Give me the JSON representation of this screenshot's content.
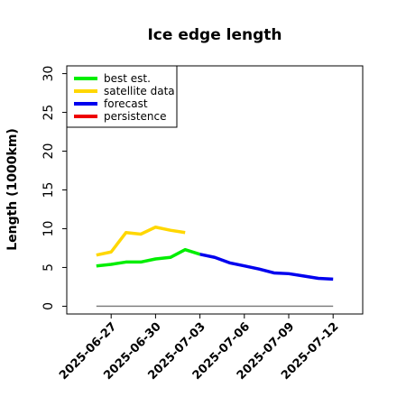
{
  "chart_data": {
    "type": "line",
    "title": "Ice edge length",
    "xlabel": "",
    "ylabel": "Length (1000km)",
    "ylim": [
      -1,
      31
    ],
    "xlim": [
      "2025-06-24",
      "2025-07-14"
    ],
    "yticks": [
      0,
      5,
      10,
      15,
      20,
      25,
      30
    ],
    "xticks": [
      "2025-06-27",
      "2025-06-30",
      "2025-07-03",
      "2025-07-06",
      "2025-07-09",
      "2025-07-12"
    ],
    "highlighted_xtick": "2025-07-03",
    "highlight_color": "#228b22",
    "grid": false,
    "legend_position": "top-left",
    "series": [
      {
        "name": "best est.",
        "color": "#00ee00",
        "x": [
          "2025-06-26",
          "2025-06-27",
          "2025-06-28",
          "2025-06-29",
          "2025-06-30",
          "2025-07-01",
          "2025-07-02",
          "2025-07-03"
        ],
        "y": [
          5.2,
          5.4,
          5.7,
          5.7,
          6.1,
          6.3,
          7.3,
          6.7
        ]
      },
      {
        "name": "satellite data",
        "color": "#ffd700",
        "x": [
          "2025-06-26",
          "2025-06-27",
          "2025-06-28",
          "2025-06-29",
          "2025-06-30",
          "2025-07-01",
          "2025-07-02"
        ],
        "y": [
          6.6,
          7.0,
          9.5,
          9.3,
          10.2,
          9.8,
          9.5
        ]
      },
      {
        "name": "forecast",
        "color": "#0000ee",
        "x": [
          "2025-07-03",
          "2025-07-04",
          "2025-07-05",
          "2025-07-06",
          "2025-07-07",
          "2025-07-08",
          "2025-07-09",
          "2025-07-10",
          "2025-07-11",
          "2025-07-12"
        ],
        "y": [
          6.7,
          6.3,
          5.6,
          5.2,
          4.8,
          4.3,
          4.2,
          3.9,
          3.6,
          3.5
        ]
      },
      {
        "name": "persistence",
        "color": "#ee0000",
        "x": [],
        "y": []
      }
    ],
    "baseline": {
      "color": "#808080",
      "x": [
        "2025-06-26",
        "2025-07-12"
      ],
      "y": [
        0,
        0
      ]
    }
  }
}
